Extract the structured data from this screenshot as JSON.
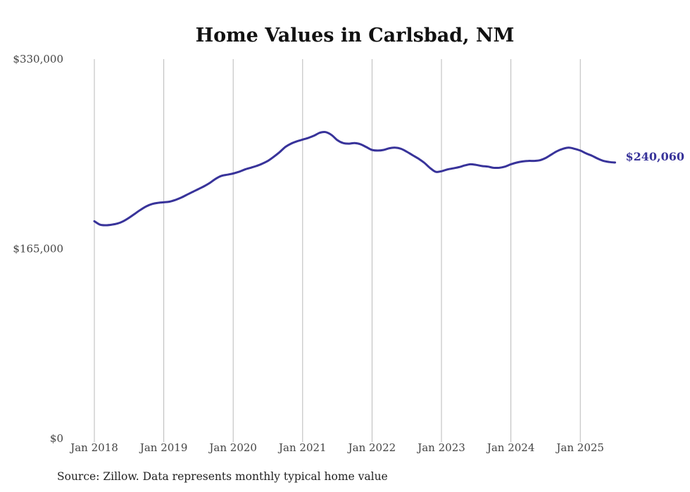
{
  "chart_data": {
    "type": "line",
    "title": "Home Values in Carlsbad, NM",
    "xlabel": "",
    "ylabel": "",
    "ylim": [
      0,
      330000
    ],
    "y_ticks": [
      {
        "value": 0,
        "label": "$0"
      },
      {
        "value": 165000,
        "label": "$165,000"
      },
      {
        "value": 330000,
        "label": "$330,000"
      }
    ],
    "x_ticks": [
      {
        "value": 2018.0,
        "label": "Jan 2018"
      },
      {
        "value": 2019.0,
        "label": "Jan 2019"
      },
      {
        "value": 2020.0,
        "label": "Jan 2020"
      },
      {
        "value": 2021.0,
        "label": "Jan 2021"
      },
      {
        "value": 2022.0,
        "label": "Jan 2022"
      },
      {
        "value": 2023.0,
        "label": "Jan 2023"
      },
      {
        "value": 2024.0,
        "label": "Jan 2024"
      },
      {
        "value": 2025.0,
        "label": "Jan 2025"
      }
    ],
    "xlim": [
      2018.0,
      2025.5
    ],
    "grid": "vertical",
    "line_color": "#38339a",
    "series": [
      {
        "name": "Typical home value",
        "x": [
          2018.0,
          2018.083,
          2018.167,
          2018.25,
          2018.333,
          2018.417,
          2018.5,
          2018.583,
          2018.667,
          2018.75,
          2018.833,
          2018.917,
          2019.0,
          2019.083,
          2019.167,
          2019.25,
          2019.333,
          2019.417,
          2019.5,
          2019.583,
          2019.667,
          2019.75,
          2019.833,
          2019.917,
          2020.0,
          2020.083,
          2020.167,
          2020.25,
          2020.333,
          2020.417,
          2020.5,
          2020.583,
          2020.667,
          2020.75,
          2020.833,
          2020.917,
          2021.0,
          2021.083,
          2021.167,
          2021.25,
          2021.333,
          2021.417,
          2021.5,
          2021.583,
          2021.667,
          2021.75,
          2021.833,
          2021.917,
          2022.0,
          2022.083,
          2022.167,
          2022.25,
          2022.333,
          2022.417,
          2022.5,
          2022.583,
          2022.667,
          2022.75,
          2022.833,
          2022.917,
          2023.0,
          2023.083,
          2023.167,
          2023.25,
          2023.333,
          2023.417,
          2023.5,
          2023.583,
          2023.667,
          2023.75,
          2023.833,
          2023.917,
          2024.0,
          2024.083,
          2024.167,
          2024.25,
          2024.333,
          2024.417,
          2024.5,
          2024.583,
          2024.667,
          2024.75,
          2024.833,
          2024.917,
          2025.0,
          2025.083,
          2025.167,
          2025.25,
          2025.333,
          2025.417,
          2025.5
        ],
        "y": [
          189000,
          186000,
          185500,
          186000,
          187000,
          189000,
          192000,
          195500,
          199000,
          202000,
          204000,
          205000,
          205500,
          206000,
          207500,
          209500,
          212000,
          214500,
          217000,
          219500,
          222500,
          226000,
          228500,
          229500,
          230500,
          232000,
          234000,
          235500,
          237000,
          239000,
          241500,
          245000,
          249000,
          253500,
          256500,
          258500,
          260000,
          261500,
          263500,
          266000,
          266500,
          264000,
          259500,
          257000,
          256500,
          257000,
          256000,
          253500,
          251000,
          250500,
          251000,
          252500,
          253000,
          252000,
          249500,
          246500,
          243500,
          240000,
          235500,
          232000,
          232500,
          234000,
          235000,
          236000,
          237500,
          238500,
          238000,
          237000,
          236500,
          235500,
          235500,
          236500,
          238500,
          240000,
          241000,
          241500,
          241500,
          242000,
          244000,
          247000,
          250000,
          252000,
          253000,
          252000,
          250500,
          248000,
          246000,
          243500,
          241500,
          240500,
          240060
        ],
        "end_label": "$240,060"
      }
    ]
  },
  "footer": {
    "source": "Source: Zillow. Data represents monthly typical home value"
  }
}
